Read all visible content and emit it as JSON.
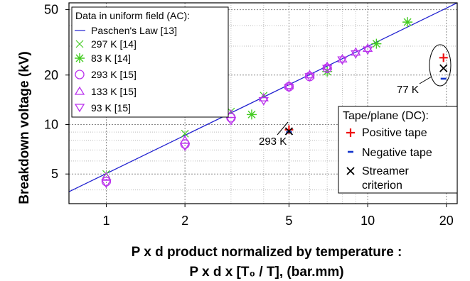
{
  "chart_data": {
    "type": "scatter",
    "xscale": "log",
    "yscale": "log",
    "xlim": [
      0.72,
      22
    ],
    "ylim": [
      3.3,
      55
    ],
    "xticks": [
      "1",
      "2",
      "5",
      "10",
      "20"
    ],
    "yticks": [
      "5",
      "10",
      "20",
      "50"
    ],
    "xlabel_line1": "P x d product normalized by temperature :",
    "xlabel_line2": "P x d x [T₀ / T], (bar.mm)",
    "ylabel": "Breakdown voltage (kV)",
    "grid": true,
    "colors": {
      "paschen": "#2020d0",
      "green": "#44cc22",
      "purple": "#bb33ee",
      "red": "#ee1111",
      "blue": "#1133cc"
    },
    "legend_ac": {
      "title": "Data in uniform field (AC):",
      "position": "top-left",
      "entries": [
        "Paschen's Law [13]",
        "297 K [14]",
        "83 K [14]",
        "293 K [15]",
        "133 K [15]",
        "93 K [15]"
      ]
    },
    "legend_dc": {
      "title": "Tape/plane (DC):",
      "position": "bottom-right",
      "entries": [
        "Positive tape",
        "Negative tape",
        "Streamer",
        "criterion"
      ]
    },
    "annotations": [
      "293 K",
      "77 K"
    ],
    "paschen_line": [
      [
        0.72,
        3.9
      ],
      [
        22,
        55
      ]
    ],
    "series": [
      {
        "name": "297 K [14]",
        "marker": "x",
        "x": [
          1,
          2,
          3,
          4
        ],
        "y": [
          5.0,
          8.8,
          12.0,
          15.0
        ]
      },
      {
        "name": "83 K [14]",
        "marker": "star",
        "x": [
          3.6,
          7.0,
          10.8,
          14.2
        ],
        "y": [
          11.5,
          21.0,
          31.0,
          42.0
        ]
      },
      {
        "name": "293 K [15]",
        "marker": "circle",
        "x": [
          1,
          2,
          3,
          5,
          6,
          7
        ],
        "y": [
          4.5,
          7.6,
          11.0,
          17.0,
          19.6,
          22.0
        ]
      },
      {
        "name": "133 K [15]",
        "marker": "triangle-up",
        "x": [
          1,
          2,
          3,
          4,
          5,
          6,
          7,
          8,
          9,
          10
        ],
        "y": [
          4.8,
          8.0,
          11.5,
          14.5,
          17.2,
          20.0,
          22.5,
          25.0,
          27.5,
          29.0
        ]
      },
      {
        "name": "93 K [15]",
        "marker": "triangle-down",
        "x": [
          1,
          2,
          3,
          4,
          5,
          6,
          7,
          8,
          9,
          10
        ],
        "y": [
          4.4,
          7.4,
          10.6,
          14.0,
          16.8,
          19.6,
          22.0,
          24.8,
          27.0,
          28.5
        ]
      },
      {
        "name": "Positive tape",
        "marker": "plus",
        "x": [
          5.0,
          19.5
        ],
        "y": [
          9.3,
          25.5
        ]
      },
      {
        "name": "Negative tape",
        "marker": "dash",
        "x": [
          5.0,
          19.5
        ],
        "y": [
          9.0,
          19.0
        ]
      },
      {
        "name": "Streamer criterion",
        "marker": "x",
        "x": [
          5.0,
          19.5
        ],
        "y": [
          9.1,
          22.0
        ]
      }
    ]
  }
}
